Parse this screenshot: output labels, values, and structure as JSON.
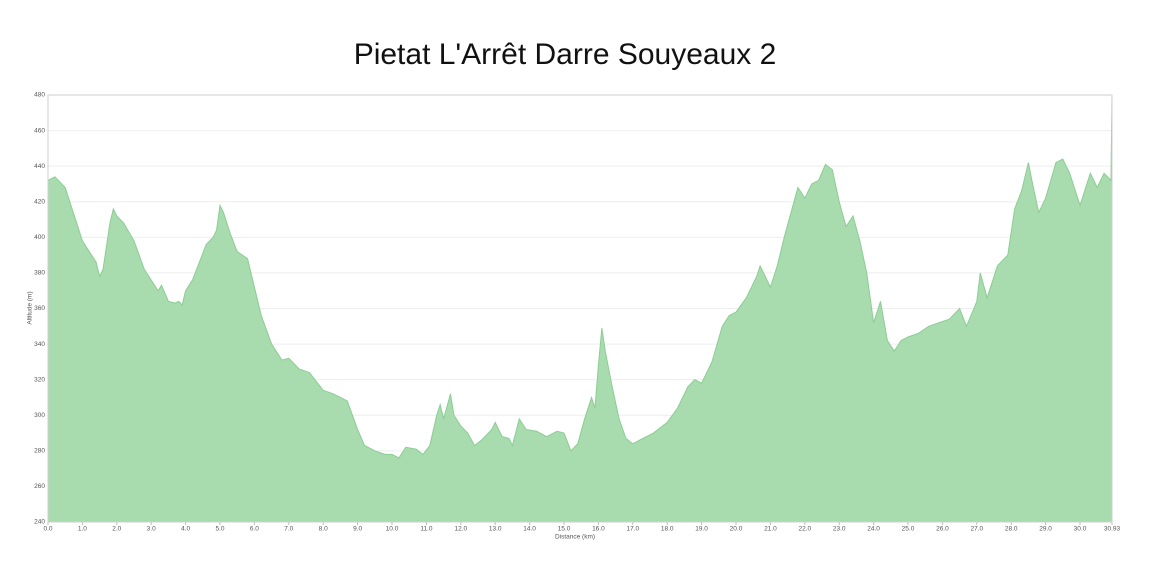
{
  "chart_data": {
    "type": "area",
    "title": "Pietat L'Arrêt Darre Souyeaux 2",
    "xlabel": "Distance   (km)",
    "ylabel": "Altitude (m)",
    "color": "#a8dbae",
    "line_color": "#8ccd94",
    "grid": true,
    "xlim": [
      0,
      30.93
    ],
    "ylim": [
      240,
      480
    ],
    "yticks": [
      240,
      260,
      280,
      300,
      320,
      340,
      360,
      380,
      400,
      420,
      440,
      460,
      480
    ],
    "xticks": [
      {
        "value": 0,
        "label": "0.0"
      },
      {
        "value": 1,
        "label": "1.0"
      },
      {
        "value": 2,
        "label": "2.0"
      },
      {
        "value": 3,
        "label": "3.0"
      },
      {
        "value": 4,
        "label": "4.0"
      },
      {
        "value": 5,
        "label": "5.0"
      },
      {
        "value": 6,
        "label": "6.0"
      },
      {
        "value": 7,
        "label": "7.0"
      },
      {
        "value": 8,
        "label": "8.0"
      },
      {
        "value": 9,
        "label": "9.0"
      },
      {
        "value": 10,
        "label": "10.0"
      },
      {
        "value": 11,
        "label": "11.0"
      },
      {
        "value": 12,
        "label": "12.0"
      },
      {
        "value": 13,
        "label": "13.0"
      },
      {
        "value": 14,
        "label": "14.0"
      },
      {
        "value": 15,
        "label": "15.0"
      },
      {
        "value": 16,
        "label": "16.0"
      },
      {
        "value": 17,
        "label": "17.0"
      },
      {
        "value": 18,
        "label": "18.0"
      },
      {
        "value": 19,
        "label": "19.0"
      },
      {
        "value": 20,
        "label": "20.0"
      },
      {
        "value": 21,
        "label": "21.0"
      },
      {
        "value": 22,
        "label": "22.0"
      },
      {
        "value": 23,
        "label": "23.0"
      },
      {
        "value": 24,
        "label": "24.0"
      },
      {
        "value": 25,
        "label": "25.0"
      },
      {
        "value": 26,
        "label": "26.0"
      },
      {
        "value": 27,
        "label": "27.0"
      },
      {
        "value": 28,
        "label": "28.0"
      },
      {
        "value": 29,
        "label": "29.0"
      },
      {
        "value": 30,
        "label": "30.0"
      },
      30.93
    ],
    "x": [
      0,
      0.2,
      0.5,
      0.8,
      1.0,
      1.2,
      1.4,
      1.5,
      1.6,
      1.8,
      1.9,
      2.0,
      2.2,
      2.5,
      2.8,
      3.0,
      3.2,
      3.3,
      3.5,
      3.7,
      3.8,
      3.9,
      4.0,
      4.2,
      4.4,
      4.6,
      4.8,
      4.9,
      5.0,
      5.1,
      5.3,
      5.5,
      5.8,
      6.0,
      6.2,
      6.5,
      6.8,
      7.0,
      7.3,
      7.6,
      8.0,
      8.3,
      8.5,
      8.7,
      9.0,
      9.2,
      9.5,
      9.8,
      10.0,
      10.2,
      10.4,
      10.7,
      10.9,
      11.1,
      11.3,
      11.4,
      11.5,
      11.7,
      11.8,
      12.0,
      12.2,
      12.4,
      12.6,
      12.9,
      13.0,
      13.2,
      13.4,
      13.5,
      13.7,
      13.9,
      14.2,
      14.5,
      14.8,
      15.0,
      15.2,
      15.4,
      15.6,
      15.8,
      15.9,
      16.0,
      16.1,
      16.2,
      16.4,
      16.6,
      16.8,
      17.0,
      17.3,
      17.6,
      18.0,
      18.3,
      18.6,
      18.8,
      19.0,
      19.3,
      19.6,
      19.8,
      20.0,
      20.3,
      20.6,
      20.7,
      21.0,
      21.2,
      21.4,
      21.6,
      21.8,
      22.0,
      22.2,
      22.4,
      22.6,
      22.8,
      23.0,
      23.2,
      23.4,
      23.6,
      23.8,
      24.0,
      24.2,
      24.4,
      24.6,
      24.8,
      25.0,
      25.3,
      25.6,
      25.9,
      26.2,
      26.5,
      26.7,
      27.0,
      27.1,
      27.3,
      27.6,
      27.9,
      28.1,
      28.3,
      28.5,
      28.6,
      28.8,
      29.0,
      29.3,
      29.5,
      29.7,
      30.0,
      30.3,
      30.5,
      30.7,
      30.9,
      30.93
    ],
    "values": [
      432,
      434,
      428,
      410,
      398,
      392,
      386,
      378,
      382,
      408,
      416,
      412,
      408,
      398,
      382,
      376,
      370,
      373,
      364,
      363,
      364,
      362,
      370,
      376,
      386,
      396,
      400,
      404,
      418,
      414,
      402,
      392,
      388,
      372,
      356,
      340,
      331,
      332,
      326,
      324,
      314,
      312,
      310,
      308,
      292,
      283,
      280,
      278,
      278,
      276,
      282,
      281,
      278,
      283,
      300,
      306,
      298,
      312,
      300,
      294,
      290,
      283,
      286,
      292,
      296,
      288,
      287,
      283,
      298,
      292,
      291,
      288,
      291,
      290,
      280,
      284,
      298,
      310,
      304,
      328,
      349,
      336,
      316,
      298,
      287,
      284,
      287,
      290,
      296,
      304,
      316,
      320,
      318,
      330,
      350,
      356,
      358,
      366,
      378,
      384,
      372,
      384,
      400,
      414,
      428,
      422,
      430,
      432,
      441,
      438,
      420,
      406,
      412,
      398,
      380,
      352,
      364,
      342,
      336,
      342,
      344,
      346,
      350,
      352,
      354,
      360,
      350,
      364,
      380,
      366,
      384,
      390,
      416,
      426,
      442,
      432,
      414,
      422,
      442,
      444,
      436,
      418,
      436,
      428,
      436,
      432,
      480
    ]
  }
}
